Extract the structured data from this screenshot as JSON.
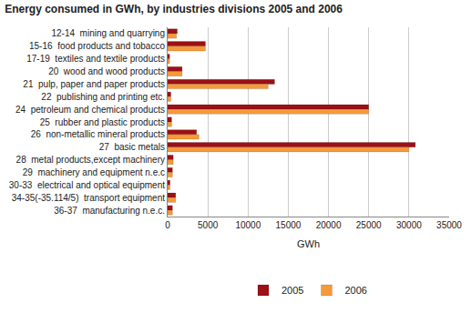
{
  "chart_data": {
    "type": "bar",
    "orientation": "horizontal",
    "title": "Energy consumed in GWh, by industries divisions 2005 and 2006",
    "x_label": "GWh",
    "categories": [
      "12-14  mining and quarrying",
      "15-16  food products and tobacco",
      "17-19  textiles and textile products",
      "20  wood and wood products",
      "21  pulp, paper and paper products",
      "22  publishing and printing etc.",
      "24  petroleum and chemical products",
      "25  rubber and plastic products",
      "26  non-metallic mineral products",
      "27  basic metals",
      "28  metal products,except machinery",
      "29  machinery and equipment n.e.c",
      "30-33  electrical and optical equipment",
      "34-35(-35.114/5)  transport equipment",
      "36-37  manufacturing n.e.c."
    ],
    "series": [
      {
        "name": "2005",
        "color": "#9c1016",
        "values": [
          1200,
          4700,
          250,
          1800,
          13300,
          400,
          25000,
          500,
          3600,
          30800,
          700,
          600,
          300,
          1000,
          600
        ]
      },
      {
        "name": "2006",
        "color": "#f59a3b",
        "values": [
          1100,
          4700,
          250,
          1800,
          12500,
          400,
          25000,
          500,
          3900,
          30000,
          700,
          600,
          300,
          1000,
          600
        ]
      }
    ],
    "xlim": [
      0,
      35000
    ],
    "xticks": [
      0,
      5000,
      10000,
      15000,
      20000,
      25000,
      30000,
      35000
    ],
    "grid": true,
    "legend": "bottom"
  }
}
